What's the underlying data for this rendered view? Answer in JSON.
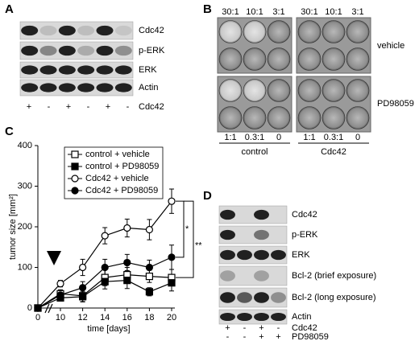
{
  "panel_a": {
    "label": "A",
    "rows": [
      "Cdc42",
      "p-ERK",
      "ERK",
      "Actin"
    ],
    "lanes": [
      "+",
      "-",
      "+",
      "-",
      "+",
      "-"
    ],
    "lane_label": "Cdc42"
  },
  "panel_b": {
    "label": "B",
    "top_ratios": [
      "30:1",
      "10:1",
      "3:1"
    ],
    "bottom_ratios": [
      "1:1",
      "0.3:1",
      "0"
    ],
    "rows": [
      "vehicle",
      "PD98059"
    ],
    "groups": [
      "control",
      "Cdc42"
    ]
  },
  "chart_data": {
    "panel": "C",
    "type": "line",
    "ylabel": "tumor size [mm²]",
    "xlabel": "time [days]",
    "x": [
      0,
      10,
      12,
      14,
      16,
      18,
      20
    ],
    "xlim": [
      0,
      20
    ],
    "xticks": [
      0,
      10,
      12,
      14,
      16,
      18,
      20
    ],
    "ylim": [
      0,
      400
    ],
    "yticks": [
      0,
      100,
      200,
      300,
      400
    ],
    "series": [
      {
        "name": "control + vehicle",
        "marker": "open-square",
        "color": "#000000",
        "values": [
          0,
          35,
          30,
          75,
          82,
          78,
          75
        ],
        "errors": [
          0,
          10,
          15,
          20,
          18,
          15,
          20
        ]
      },
      {
        "name": "control + PD98059",
        "marker": "filled-square",
        "color": "#000000",
        "values": [
          0,
          25,
          28,
          65,
          68,
          40,
          62
        ],
        "errors": [
          0,
          8,
          12,
          18,
          20,
          10,
          20
        ]
      },
      {
        "name": "Cdc42 + vehicle",
        "marker": "open-circle",
        "color": "#000000",
        "values": [
          0,
          60,
          100,
          178,
          197,
          193,
          263
        ],
        "errors": [
          0,
          8,
          20,
          20,
          22,
          25,
          30
        ]
      },
      {
        "name": "Cdc42 + PD98059",
        "marker": "filled-circle",
        "color": "#000000",
        "values": [
          0,
          32,
          50,
          100,
          112,
          100,
          125
        ],
        "errors": [
          0,
          8,
          15,
          20,
          20,
          18,
          30
        ]
      }
    ],
    "annotations": [
      "*",
      "**"
    ]
  },
  "panel_d": {
    "label": "D",
    "rows": [
      "Cdc42",
      "p-ERK",
      "ERK",
      "Bcl-2 (brief exposure)",
      "Bcl-2 (long exposure)",
      "Actin"
    ],
    "lanes": [
      [
        "+",
        "-",
        "+",
        "-"
      ],
      [
        "-",
        "-",
        "+",
        "+"
      ]
    ],
    "lane_labels": [
      "Cdc42",
      "PD98059"
    ]
  }
}
